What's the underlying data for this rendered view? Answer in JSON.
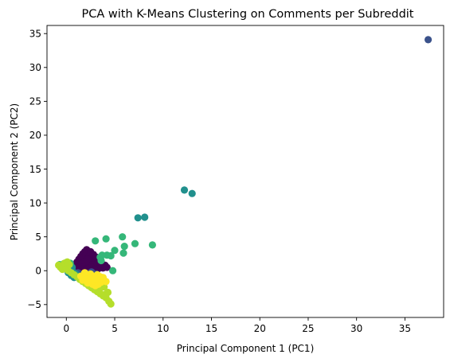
{
  "chart_data": {
    "type": "scatter",
    "title": "PCA with K-Means Clustering on Comments per Subreddit",
    "xlabel": "Principal Component 1 (PC1)",
    "ylabel": "Principal Component 2 (PC2)",
    "xlim": [
      -2.0,
      39.0
    ],
    "ylim": [
      -6.9,
      36.2
    ],
    "xticks": [
      0,
      5,
      10,
      15,
      20,
      25,
      30,
      35
    ],
    "yticks": [
      -5,
      0,
      5,
      10,
      15,
      20,
      25,
      30,
      35
    ],
    "grid": false,
    "legend": "none",
    "series": [
      {
        "color": "#440154",
        "points": [
          [
            0.6,
            0.4
          ],
          [
            0.9,
            0.9
          ],
          [
            1.1,
            1.3
          ],
          [
            1.3,
            1.7
          ],
          [
            1.5,
            2.1
          ],
          [
            1.7,
            2.5
          ],
          [
            1.9,
            2.8
          ],
          [
            2.1,
            3.1
          ],
          [
            0.8,
            0.1
          ],
          [
            1.0,
            0.5
          ],
          [
            1.2,
            0.9
          ],
          [
            1.4,
            1.3
          ],
          [
            1.6,
            1.6
          ],
          [
            1.8,
            2.0
          ],
          [
            2.0,
            2.3
          ],
          [
            2.2,
            2.6
          ],
          [
            2.4,
            2.2
          ],
          [
            2.6,
            1.9
          ],
          [
            2.8,
            1.6
          ],
          [
            3.0,
            1.3
          ],
          [
            3.2,
            1.0
          ],
          [
            3.4,
            0.8
          ],
          [
            3.6,
            0.6
          ],
          [
            3.8,
            0.4
          ],
          [
            1.5,
            0.3
          ],
          [
            1.8,
            0.6
          ],
          [
            2.1,
            0.9
          ],
          [
            2.4,
            1.2
          ],
          [
            2.7,
            0.9
          ],
          [
            3.0,
            0.6
          ],
          [
            3.3,
            0.3
          ],
          [
            1.3,
            -0.1
          ],
          [
            1.7,
            0.0
          ],
          [
            2.0,
            0.2
          ],
          [
            2.3,
            0.4
          ],
          [
            2.6,
            0.5
          ],
          [
            2.9,
            0.2
          ],
          [
            3.5,
            1.3
          ],
          [
            3.7,
            1.0
          ],
          [
            4.0,
            0.8
          ],
          [
            4.2,
            0.5
          ],
          [
            2.5,
            2.8
          ],
          [
            2.2,
            1.7
          ],
          [
            1.9,
            1.3
          ],
          [
            1.6,
            1.0
          ],
          [
            1.4,
            0.6
          ],
          [
            2.8,
            2.4
          ],
          [
            3.1,
            2.0
          ]
        ]
      },
      {
        "color": "#3b528b",
        "points": [
          [
            37.4,
            34.1
          ],
          [
            1.2,
            -0.3
          ],
          [
            1.6,
            -0.6
          ],
          [
            2.0,
            -0.7
          ],
          [
            2.4,
            -0.4
          ],
          [
            2.8,
            -0.8
          ],
          [
            3.1,
            -0.5
          ],
          [
            0.9,
            -0.6
          ],
          [
            1.4,
            -0.9
          ],
          [
            1.8,
            -0.4
          ],
          [
            2.6,
            -0.2
          ],
          [
            3.3,
            -0.9
          ]
        ]
      },
      {
        "color": "#21908d",
        "points": [
          [
            12.2,
            11.9
          ],
          [
            13.0,
            11.4
          ],
          [
            7.4,
            7.8
          ],
          [
            8.1,
            7.9
          ],
          [
            0.2,
            -0.3
          ],
          [
            0.5,
            -0.7
          ],
          [
            0.8,
            -1.0
          ],
          [
            1.0,
            -0.5
          ],
          [
            0.4,
            0.2
          ],
          [
            0.6,
            0.5
          ],
          [
            1.2,
            -0.9
          ],
          [
            0.3,
            0.7
          ],
          [
            0.7,
            -0.2
          ]
        ]
      },
      {
        "color": "#35b779",
        "points": [
          [
            5.8,
            5.0
          ],
          [
            4.1,
            4.7
          ],
          [
            3.0,
            4.4
          ],
          [
            6.0,
            3.6
          ],
          [
            8.9,
            3.8
          ],
          [
            7.1,
            4.0
          ],
          [
            5.0,
            3.0
          ],
          [
            5.9,
            2.6
          ],
          [
            4.6,
            2.2
          ],
          [
            4.2,
            2.3
          ],
          [
            3.7,
            2.3
          ],
          [
            3.5,
            2.0
          ],
          [
            3.6,
            1.5
          ],
          [
            4.8,
            0.0
          ],
          [
            -0.5,
            0.6
          ],
          [
            -0.7,
            0.9
          ],
          [
            -0.3,
            1.0
          ],
          [
            0.0,
            1.2
          ],
          [
            -0.4,
            0.4
          ],
          [
            0.2,
            0.8
          ],
          [
            -0.1,
            0.5
          ],
          [
            0.4,
            1.1
          ]
        ]
      },
      {
        "color": "#b5de2b",
        "points": [
          [
            -0.8,
            0.8
          ],
          [
            -0.6,
            0.5
          ],
          [
            -0.4,
            0.2
          ],
          [
            -0.3,
            0.7
          ],
          [
            0.0,
            0.4
          ],
          [
            0.2,
            0.0
          ],
          [
            0.5,
            -0.3
          ],
          [
            0.8,
            -0.6
          ],
          [
            1.1,
            -0.9
          ],
          [
            1.4,
            -1.3
          ],
          [
            1.7,
            -1.6
          ],
          [
            2.0,
            -1.9
          ],
          [
            2.3,
            -2.2
          ],
          [
            2.6,
            -2.5
          ],
          [
            2.9,
            -2.8
          ],
          [
            3.2,
            -3.1
          ],
          [
            3.5,
            -3.4
          ],
          [
            3.8,
            -3.7
          ],
          [
            4.1,
            -4.0
          ],
          [
            4.4,
            -4.5
          ],
          [
            4.6,
            -4.9
          ],
          [
            4.3,
            -3.2
          ],
          [
            3.9,
            -2.4
          ],
          [
            3.1,
            -2.9
          ],
          [
            2.7,
            -2.3
          ],
          [
            0.3,
            0.9
          ],
          [
            -0.2,
            1.1
          ],
          [
            0.1,
            1.3
          ],
          [
            3.4,
            -2.9
          ],
          [
            4.0,
            -3.5
          ],
          [
            2.4,
            -1.9
          ]
        ]
      },
      {
        "color": "#fde725",
        "points": [
          [
            1.5,
            -0.8
          ],
          [
            1.8,
            -1.1
          ],
          [
            2.1,
            -1.4
          ],
          [
            2.4,
            -1.7
          ],
          [
            2.7,
            -2.0
          ],
          [
            3.0,
            -2.2
          ],
          [
            3.3,
            -2.0
          ],
          [
            3.6,
            -1.7
          ],
          [
            3.9,
            -1.4
          ],
          [
            3.5,
            -0.9
          ],
          [
            3.2,
            -0.6
          ],
          [
            2.9,
            -0.9
          ],
          [
            2.6,
            -1.2
          ],
          [
            2.3,
            -0.9
          ],
          [
            2.0,
            -0.6
          ],
          [
            1.7,
            -1.4
          ],
          [
            2.2,
            -1.8
          ],
          [
            2.8,
            -1.5
          ],
          [
            3.4,
            -1.3
          ],
          [
            3.8,
            -1.0
          ],
          [
            4.1,
            -1.6
          ],
          [
            2.5,
            -0.5
          ],
          [
            3.0,
            -1.2
          ],
          [
            1.9,
            -0.3
          ]
        ]
      }
    ]
  }
}
